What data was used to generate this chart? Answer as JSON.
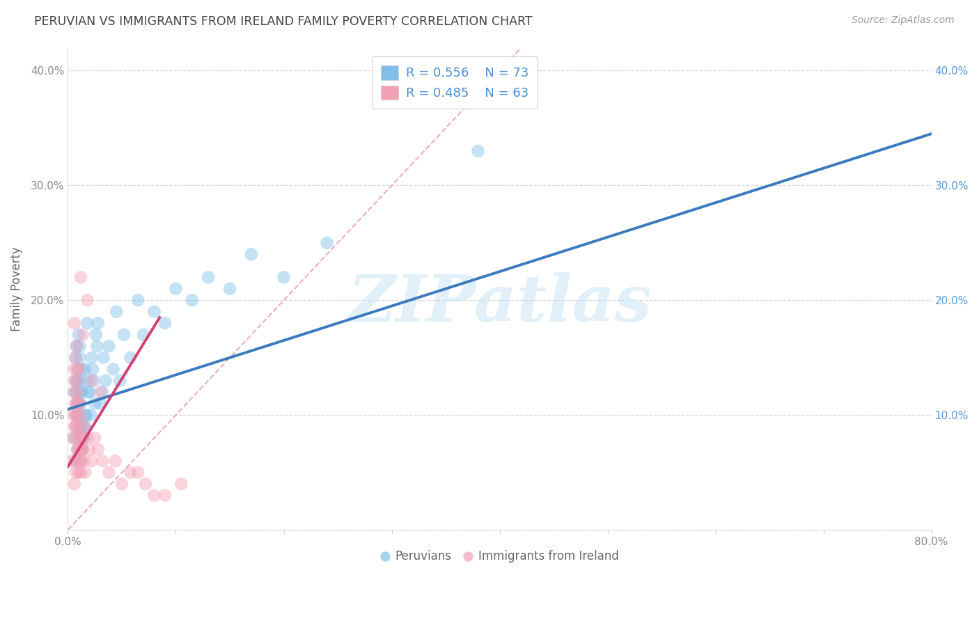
{
  "title": "PERUVIAN VS IMMIGRANTS FROM IRELAND FAMILY POVERTY CORRELATION CHART",
  "source_text": "Source: ZipAtlas.com",
  "ylabel": "Family Poverty",
  "watermark": "ZIPatlas",
  "xlim": [
    0.0,
    0.8
  ],
  "ylim": [
    0.0,
    0.42
  ],
  "xtick_vals": [
    0.0,
    0.1,
    0.2,
    0.3,
    0.4,
    0.5,
    0.6,
    0.7,
    0.8
  ],
  "xticklabels": [
    "0.0%",
    "",
    "",
    "",
    "",
    "",
    "",
    "",
    "80.0%"
  ],
  "ytick_vals": [
    0.0,
    0.1,
    0.2,
    0.3,
    0.4
  ],
  "yticklabels_left": [
    "",
    "10.0%",
    "20.0%",
    "30.0%",
    "40.0%"
  ],
  "yticklabels_right": [
    "",
    "10.0%",
    "20.0%",
    "30.0%",
    "40.0%"
  ],
  "blue_color": "#7fbfea",
  "pink_color": "#f4a0b5",
  "blue_line_color": "#3a7abf",
  "pink_line_color": "#d44070",
  "diag_line_color": "#e8a0b0",
  "legend_R1": "R = 0.556",
  "legend_N1": "N = 73",
  "legend_R2": "R = 0.485",
  "legend_N2": "N = 63",
  "legend_label1": "Peruvians",
  "legend_label2": "Immigrants from Ireland",
  "title_color": "#444444",
  "axis_label_color": "#666666",
  "tick_color": "#888888",
  "right_tick_color": "#5599dd",
  "grid_color": "#d8d8d8",
  "background_color": "#ffffff",
  "blue_trend_x": [
    0.0,
    0.8
  ],
  "blue_trend_y": [
    0.105,
    0.345
  ],
  "pink_trend_x": [
    0.0,
    0.085
  ],
  "pink_trend_y": [
    0.055,
    0.185
  ],
  "diag_line_x": [
    0.0,
    0.42
  ],
  "diag_line_y": [
    0.0,
    0.42
  ],
  "blue_scatter_x": [
    0.005,
    0.007,
    0.008,
    0.006,
    0.009,
    0.01,
    0.008,
    0.011,
    0.007,
    0.012,
    0.01,
    0.009,
    0.013,
    0.008,
    0.011,
    0.01,
    0.007,
    0.014,
    0.012,
    0.009,
    0.015,
    0.011,
    0.008,
    0.013,
    0.01,
    0.016,
    0.012,
    0.009,
    0.014,
    0.011,
    0.017,
    0.013,
    0.01,
    0.015,
    0.012,
    0.018,
    0.014,
    0.011,
    0.016,
    0.013,
    0.02,
    0.022,
    0.025,
    0.018,
    0.021,
    0.024,
    0.027,
    0.019,
    0.023,
    0.026,
    0.03,
    0.033,
    0.035,
    0.028,
    0.032,
    0.038,
    0.042,
    0.045,
    0.048,
    0.052,
    0.058,
    0.065,
    0.07,
    0.08,
    0.09,
    0.1,
    0.115,
    0.13,
    0.15,
    0.17,
    0.2,
    0.24,
    0.38
  ],
  "blue_scatter_y": [
    0.08,
    0.06,
    0.1,
    0.12,
    0.07,
    0.09,
    0.11,
    0.08,
    0.13,
    0.06,
    0.1,
    0.14,
    0.07,
    0.12,
    0.09,
    0.11,
    0.15,
    0.08,
    0.13,
    0.1,
    0.09,
    0.12,
    0.16,
    0.07,
    0.11,
    0.14,
    0.09,
    0.13,
    0.08,
    0.15,
    0.1,
    0.12,
    0.17,
    0.09,
    0.11,
    0.13,
    0.08,
    0.16,
    0.1,
    0.14,
    0.12,
    0.15,
    0.11,
    0.18,
    0.1,
    0.13,
    0.16,
    0.12,
    0.14,
    0.17,
    0.11,
    0.15,
    0.13,
    0.18,
    0.12,
    0.16,
    0.14,
    0.19,
    0.13,
    0.17,
    0.15,
    0.2,
    0.17,
    0.19,
    0.18,
    0.21,
    0.2,
    0.22,
    0.21,
    0.24,
    0.22,
    0.25,
    0.33
  ],
  "pink_scatter_x": [
    0.004,
    0.006,
    0.005,
    0.007,
    0.006,
    0.008,
    0.005,
    0.009,
    0.007,
    0.01,
    0.008,
    0.006,
    0.011,
    0.007,
    0.009,
    0.008,
    0.006,
    0.012,
    0.01,
    0.007,
    0.013,
    0.009,
    0.006,
    0.011,
    0.008,
    0.014,
    0.01,
    0.007,
    0.012,
    0.009,
    0.015,
    0.011,
    0.008,
    0.013,
    0.01,
    0.016,
    0.012,
    0.009,
    0.014,
    0.016,
    0.018,
    0.02,
    0.022,
    0.025,
    0.028,
    0.032,
    0.038,
    0.044,
    0.05,
    0.058,
    0.065,
    0.072,
    0.08,
    0.09,
    0.105,
    0.018,
    0.012,
    0.008,
    0.006,
    0.01,
    0.014,
    0.022,
    0.03
  ],
  "pink_scatter_y": [
    0.06,
    0.04,
    0.08,
    0.05,
    0.09,
    0.06,
    0.1,
    0.07,
    0.11,
    0.05,
    0.08,
    0.12,
    0.06,
    0.09,
    0.07,
    0.11,
    0.13,
    0.05,
    0.08,
    0.1,
    0.07,
    0.12,
    0.14,
    0.06,
    0.09,
    0.08,
    0.11,
    0.15,
    0.07,
    0.1,
    0.06,
    0.09,
    0.13,
    0.08,
    0.11,
    0.05,
    0.1,
    0.14,
    0.07,
    0.09,
    0.08,
    0.07,
    0.06,
    0.08,
    0.07,
    0.06,
    0.05,
    0.06,
    0.04,
    0.05,
    0.05,
    0.04,
    0.03,
    0.03,
    0.04,
    0.2,
    0.22,
    0.16,
    0.18,
    0.14,
    0.17,
    0.13,
    0.12
  ]
}
